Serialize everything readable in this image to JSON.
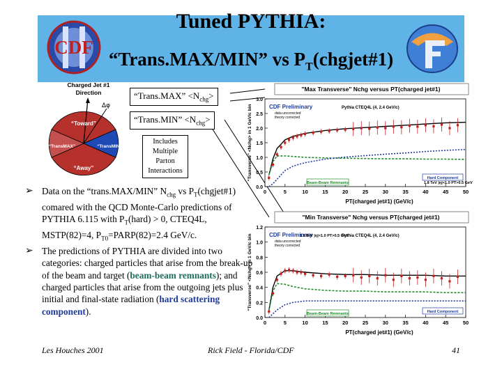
{
  "slide": {
    "title_line1": "Tuned PYTHIA:",
    "title_line2_pre": "“Trans.MAX/MIN” vs P",
    "title_line2_sub": "T",
    "title_line2_post": "(chgjet#1)",
    "logo_left": "CDF",
    "colors": {
      "banner": "#5fb3e6",
      "text_blue": "#1f3a9a",
      "text_green": "#1f6d5a"
    }
  },
  "diagram": {
    "header_line1": "Charged Jet #1",
    "header_line2": "Direction",
    "delta_phi": "Δφ",
    "toward": "“Toward”",
    "away": "“Away”",
    "trans_max": "“TransMAX”",
    "trans_min": "“TransMIN”"
  },
  "callouts": {
    "max_pre": "“Trans.MAX” <N",
    "max_sub": "chg",
    "max_post": ">",
    "min_pre": "“Trans.MIN” <N",
    "min_sub": "chg",
    "min_post": ">",
    "note_lines": [
      "Includes",
      "Multiple",
      "Parton",
      "Interactions"
    ]
  },
  "bullets": {
    "b1_a": "Data on the “trans.MAX/MIN” N",
    "b1_sub1": "chg",
    "b1_b": " vs P",
    "b1_sub2": "T",
    "b1_c": "(chgjet#1) comared with the QCD Monte-Carlo predictions of PYTHIA 6.115 with P",
    "b1_sub3": "T",
    "b1_d": "(hard) > 0, CTEQ4L, MSTP(82)=4, P",
    "b1_sub4": "T0",
    "b1_e": "=PARP(82)=2.4 GeV/c.",
    "b2_a": "The predictions of PYTHIA are divided into two categories: charged particles that arise from the break-up of the beam and target (",
    "b2_green": "beam-beam remnants",
    "b2_b": "); and charged particles that arise from the outgoing jets plus initial and final-state radiation (",
    "b2_blue": "hard scattering component",
    "b2_c": ")."
  },
  "plots": [
    {
      "title": "\"Max Transverse\" Nchg versus PT(charged jet#1)",
      "ylabel": "\"Transverse\" <Nchg> in 1 GeV/c bin",
      "xlabel": "PT(charged jet#1) (GeV/c)",
      "prelim": "CDF Preliminary",
      "prelim_note1": "data uncorrected",
      "prelim_note2": "theory corrected",
      "legend": "Pythia CTEQ4L (4, 2.4 GeV/c)",
      "label_hard": "Hard Component",
      "label_bbr": "Beam-Beam Remnants",
      "label_cuts": "1.8 TeV |η|<1.0 PT>0.5 GeV"
    },
    {
      "title": "\"Min Transverse\" Nchg versus PT(charged jet#1)",
      "ylabel": "\"Transverse\" <Nchg> in 1 GeV/c bin",
      "xlabel": "PT(charged jet#1) (GeV/c)",
      "prelim": "CDF Preliminary",
      "prelim_note1": "data uncorrected",
      "prelim_note2": "theory corrected",
      "legend": "Pythia CTEQ4L (4, 2.4 GeV/c)",
      "label_hard": "Hard Component",
      "label_bbr": "Beam-Beam Remnants",
      "label_cuts": "1.8 TeV |η|<1.0 PT>0.5 GeV"
    }
  ],
  "chart_data": [
    {
      "type": "scatter",
      "title": "\"Max Transverse\" Nchg versus PT(charged jet#1)",
      "xlabel": "PT(charged jet#1) (GeV/c)",
      "ylabel": "\"Transverse\" <Nchg> in 1 GeV/c bin",
      "xlim": [
        0,
        50
      ],
      "ylim": [
        0.0,
        3.0
      ],
      "x_ticks": [
        0,
        5,
        10,
        15,
        20,
        25,
        30,
        35,
        40,
        45,
        50
      ],
      "y_ticks": [
        0.0,
        0.5,
        1.0,
        1.5,
        2.0,
        2.5,
        3.0
      ],
      "series": [
        {
          "name": "CDF Preliminary",
          "kind": "points",
          "x": [
            1,
            2,
            3,
            4,
            5,
            6,
            7,
            8,
            9,
            10,
            12,
            14,
            16,
            18,
            20,
            22,
            24,
            26,
            28,
            30,
            32,
            34,
            36,
            38,
            40,
            42,
            44,
            46,
            48
          ],
          "y": [
            0.3,
            0.75,
            1.1,
            1.35,
            1.5,
            1.6,
            1.67,
            1.72,
            1.76,
            1.8,
            1.84,
            1.88,
            1.9,
            1.93,
            1.95,
            1.97,
            2.0,
            1.98,
            2.02,
            2.0,
            2.05,
            2.03,
            2.08,
            2.05,
            2.1,
            2.06,
            2.12,
            2.0,
            2.1
          ]
        },
        {
          "name": "Pythia CTEQ4L (4, 2.4 GeV/c)",
          "kind": "line",
          "x": [
            1,
            2,
            3,
            5,
            7,
            10,
            15,
            20,
            25,
            30,
            35,
            40,
            45,
            50
          ],
          "y": [
            0.4,
            0.95,
            1.3,
            1.6,
            1.72,
            1.82,
            1.92,
            1.98,
            2.02,
            2.06,
            2.1,
            2.14,
            2.18,
            2.2
          ]
        },
        {
          "name": "Beam-Beam Remnants",
          "kind": "line",
          "x": [
            1,
            2,
            3,
            5,
            7,
            10,
            15,
            20,
            25,
            30,
            35,
            40,
            45,
            50
          ],
          "y": [
            0.4,
            0.85,
            1.05,
            1.05,
            1.03,
            1.0,
            0.98,
            0.97,
            0.96,
            0.95,
            0.95,
            0.94,
            0.94,
            0.93
          ]
        },
        {
          "name": "Hard Component",
          "kind": "line",
          "x": [
            1,
            2,
            3,
            5,
            7,
            10,
            15,
            20,
            25,
            30,
            35,
            40,
            45,
            50
          ],
          "y": [
            0.0,
            0.1,
            0.25,
            0.55,
            0.7,
            0.82,
            0.94,
            1.01,
            1.06,
            1.11,
            1.15,
            1.2,
            1.24,
            1.27
          ]
        }
      ]
    },
    {
      "type": "scatter",
      "title": "\"Min Transverse\" Nchg versus PT(charged jet#1)",
      "xlabel": "PT(charged jet#1) (GeV/c)",
      "ylabel": "\"Transverse\" <Nchg> in 1 GeV/c bin",
      "xlim": [
        0,
        50
      ],
      "ylim": [
        0.0,
        1.2
      ],
      "x_ticks": [
        0,
        5,
        10,
        15,
        20,
        25,
        30,
        35,
        40,
        45,
        50
      ],
      "y_ticks": [
        0.0,
        0.2,
        0.4,
        0.6,
        0.8,
        1.0,
        1.2
      ],
      "series": [
        {
          "name": "CDF Preliminary",
          "kind": "points",
          "x": [
            1,
            2,
            3,
            4,
            5,
            6,
            7,
            8,
            9,
            10,
            12,
            14,
            16,
            18,
            20,
            22,
            24,
            26,
            28,
            30,
            32,
            34,
            36,
            38,
            40,
            42,
            44,
            46,
            48
          ],
          "y": [
            0.08,
            0.32,
            0.5,
            0.58,
            0.62,
            0.63,
            0.62,
            0.6,
            0.6,
            0.58,
            0.56,
            0.55,
            0.57,
            0.54,
            0.55,
            0.56,
            0.53,
            0.55,
            0.52,
            0.56,
            0.5,
            0.55,
            0.52,
            0.53,
            0.5,
            0.55,
            0.52,
            0.48,
            0.54
          ]
        },
        {
          "name": "Pythia CTEQ4L (4, 2.4 GeV/c)",
          "kind": "line",
          "x": [
            1,
            2,
            3,
            5,
            7,
            10,
            15,
            20,
            25,
            30,
            35,
            40,
            45,
            50
          ],
          "y": [
            0.1,
            0.4,
            0.55,
            0.62,
            0.62,
            0.6,
            0.58,
            0.57,
            0.57,
            0.56,
            0.56,
            0.56,
            0.55,
            0.55
          ]
        },
        {
          "name": "Beam-Beam Remnants",
          "kind": "line",
          "x": [
            1,
            2,
            3,
            5,
            7,
            10,
            15,
            20,
            25,
            30,
            35,
            40,
            45,
            50
          ],
          "y": [
            0.1,
            0.35,
            0.45,
            0.44,
            0.41,
            0.38,
            0.36,
            0.35,
            0.35,
            0.34,
            0.34,
            0.34,
            0.33,
            0.33
          ]
        },
        {
          "name": "Hard Component",
          "kind": "line",
          "x": [
            1,
            2,
            3,
            5,
            7,
            10,
            15,
            20,
            25,
            30,
            35,
            40,
            45,
            50
          ],
          "y": [
            0.0,
            0.05,
            0.1,
            0.17,
            0.2,
            0.22,
            0.22,
            0.22,
            0.22,
            0.22,
            0.22,
            0.22,
            0.22,
            0.22
          ]
        }
      ]
    }
  ],
  "footer": {
    "left": "Les Houches 2001",
    "center": "Rick Field - Florida/CDF",
    "right": "41"
  }
}
